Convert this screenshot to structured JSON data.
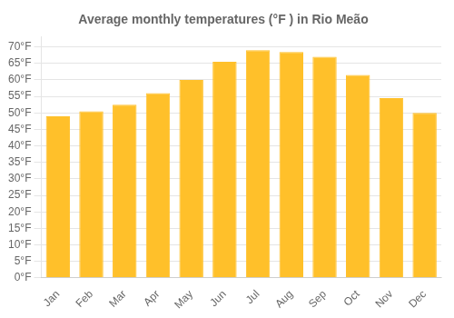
{
  "chart_data": {
    "type": "bar",
    "title": "Average monthly temperatures (°F ) in Rio Meão",
    "categories": [
      "Jan",
      "Feb",
      "Mar",
      "Apr",
      "May",
      "Jun",
      "Jul",
      "Aug",
      "Sep",
      "Oct",
      "Nov",
      "Dec"
    ],
    "values": [
      49,
      50.5,
      52.5,
      56,
      60,
      65.5,
      69,
      68.5,
      67,
      61.5,
      54.5,
      50
    ],
    "color": "#FFC02A",
    "ylim": [
      0,
      73
    ],
    "yticks": [
      {
        "value": 0,
        "label": "0°F"
      },
      {
        "value": 5,
        "label": "5°F"
      },
      {
        "value": 10,
        "label": "10°F"
      },
      {
        "value": 15,
        "label": "15°F"
      },
      {
        "value": 20,
        "label": "20°F"
      },
      {
        "value": 25,
        "label": "25°F"
      },
      {
        "value": 30,
        "label": "30°F"
      },
      {
        "value": 35,
        "label": "35°F"
      },
      {
        "value": 40,
        "label": "40°F"
      },
      {
        "value": 45,
        "label": "45°F"
      },
      {
        "value": 50,
        "label": "50°F"
      },
      {
        "value": 55,
        "label": "55°F"
      },
      {
        "value": 60,
        "label": "60°F"
      },
      {
        "value": 65,
        "label": "65°F"
      },
      {
        "value": 70,
        "label": "70°F"
      }
    ],
    "grid": true
  }
}
